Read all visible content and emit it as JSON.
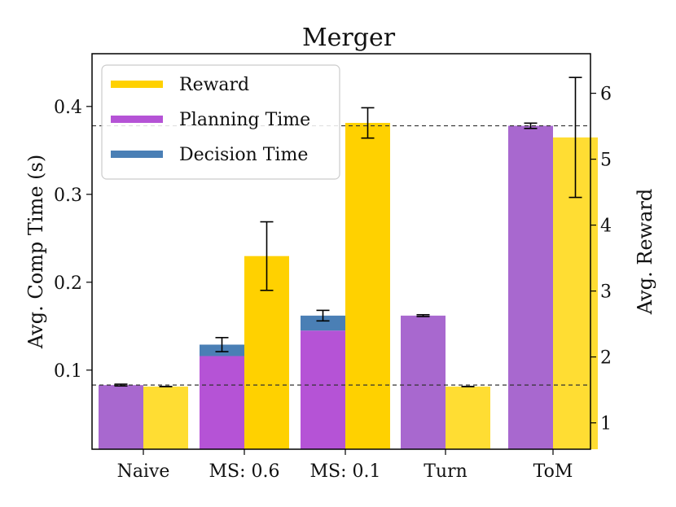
{
  "chart_data": {
    "type": "bar",
    "title": "Merger",
    "categories": [
      "Naive",
      "MS: 0.6",
      "MS: 0.1",
      "Turn",
      "ToM"
    ],
    "ylabel_left": "Avg. Comp Time (s)",
    "ylabel_right": "Avg. Reward",
    "ylim_left": [
      0.01,
      0.46
    ],
    "ylim_right": [
      0.6,
      6.6
    ],
    "yticks_left": [
      0.1,
      0.2,
      0.3,
      0.4
    ],
    "yticks_left_labels": [
      "0.1",
      "0.2",
      "0.3",
      "0.4"
    ],
    "yticks_right": [
      1,
      2,
      3,
      4,
      5,
      6
    ],
    "yticks_right_labels": [
      "1",
      "2",
      "3",
      "4",
      "5",
      "6"
    ],
    "planning_time": [
      0.083,
      0.116,
      0.145,
      0.162,
      0.378
    ],
    "decision_time": [
      0.0,
      0.013,
      0.017,
      0.0,
      0.0
    ],
    "comp_time_error": [
      0.001,
      0.008,
      0.006,
      0.001,
      0.003
    ],
    "reward": [
      1.55,
      3.53,
      5.55,
      1.55,
      5.33
    ],
    "reward_error": [
      0.0,
      0.52,
      0.23,
      0.0,
      0.91
    ],
    "reference_lines_left": [
      0.083,
      0.378
    ],
    "legend": {
      "position": "top-left",
      "entries": [
        {
          "label": "Reward",
          "color": "#FFD100"
        },
        {
          "label": "Planning Time",
          "color": "#B553D6"
        },
        {
          "label": "Decision Time",
          "color": "#4A7FB5"
        }
      ]
    },
    "colors": {
      "reward": "#FFD100",
      "reward_light": "#FFDD33",
      "planning": "#B553D6",
      "planning_light": "#A868CF",
      "decision": "#4A7FB5",
      "error": "#000000",
      "reference_line": "#333333"
    }
  }
}
